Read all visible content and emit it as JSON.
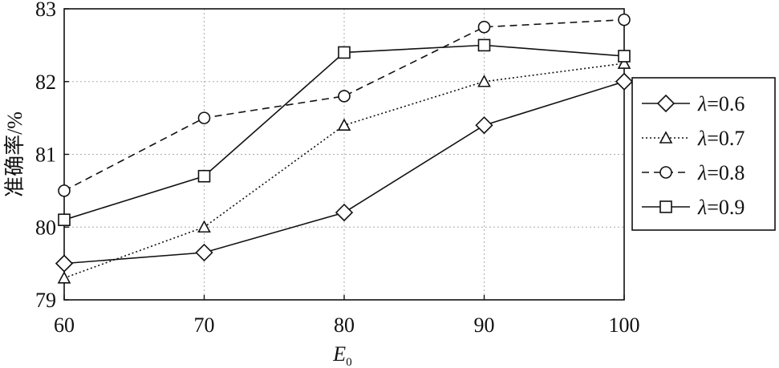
{
  "chart_data": {
    "type": "line",
    "x": [
      60,
      70,
      80,
      90,
      100
    ],
    "xlabel": "E",
    "xlabel_sub": "0",
    "ylabel": "准确率/%",
    "xlim": [
      60,
      100
    ],
    "ylim": [
      79,
      83
    ],
    "xticks": [
      "60",
      "70",
      "80",
      "90",
      "100"
    ],
    "yticks": [
      "79",
      "80",
      "81",
      "82",
      "83"
    ],
    "grid": true,
    "legend_position": "right",
    "series": [
      {
        "name": "λ=0.6",
        "symbol": "λ",
        "value": "=0.6",
        "marker": "diamond",
        "dash": "solid",
        "values": [
          79.5,
          79.65,
          80.2,
          81.4,
          82.0
        ]
      },
      {
        "name": "λ=0.7",
        "symbol": "λ",
        "value": "=0.7",
        "marker": "triangle",
        "dash": "dotted",
        "values": [
          79.3,
          80.0,
          81.4,
          82.0,
          82.25
        ]
      },
      {
        "name": "λ=0.8",
        "symbol": "λ",
        "value": "=0.8",
        "marker": "circle",
        "dash": "dashed",
        "values": [
          80.5,
          81.5,
          81.8,
          82.75,
          82.85
        ]
      },
      {
        "name": "λ=0.9",
        "symbol": "λ",
        "value": "=0.9",
        "marker": "square",
        "dash": "solid",
        "values": [
          80.1,
          80.7,
          82.4,
          82.5,
          82.35
        ]
      }
    ]
  }
}
